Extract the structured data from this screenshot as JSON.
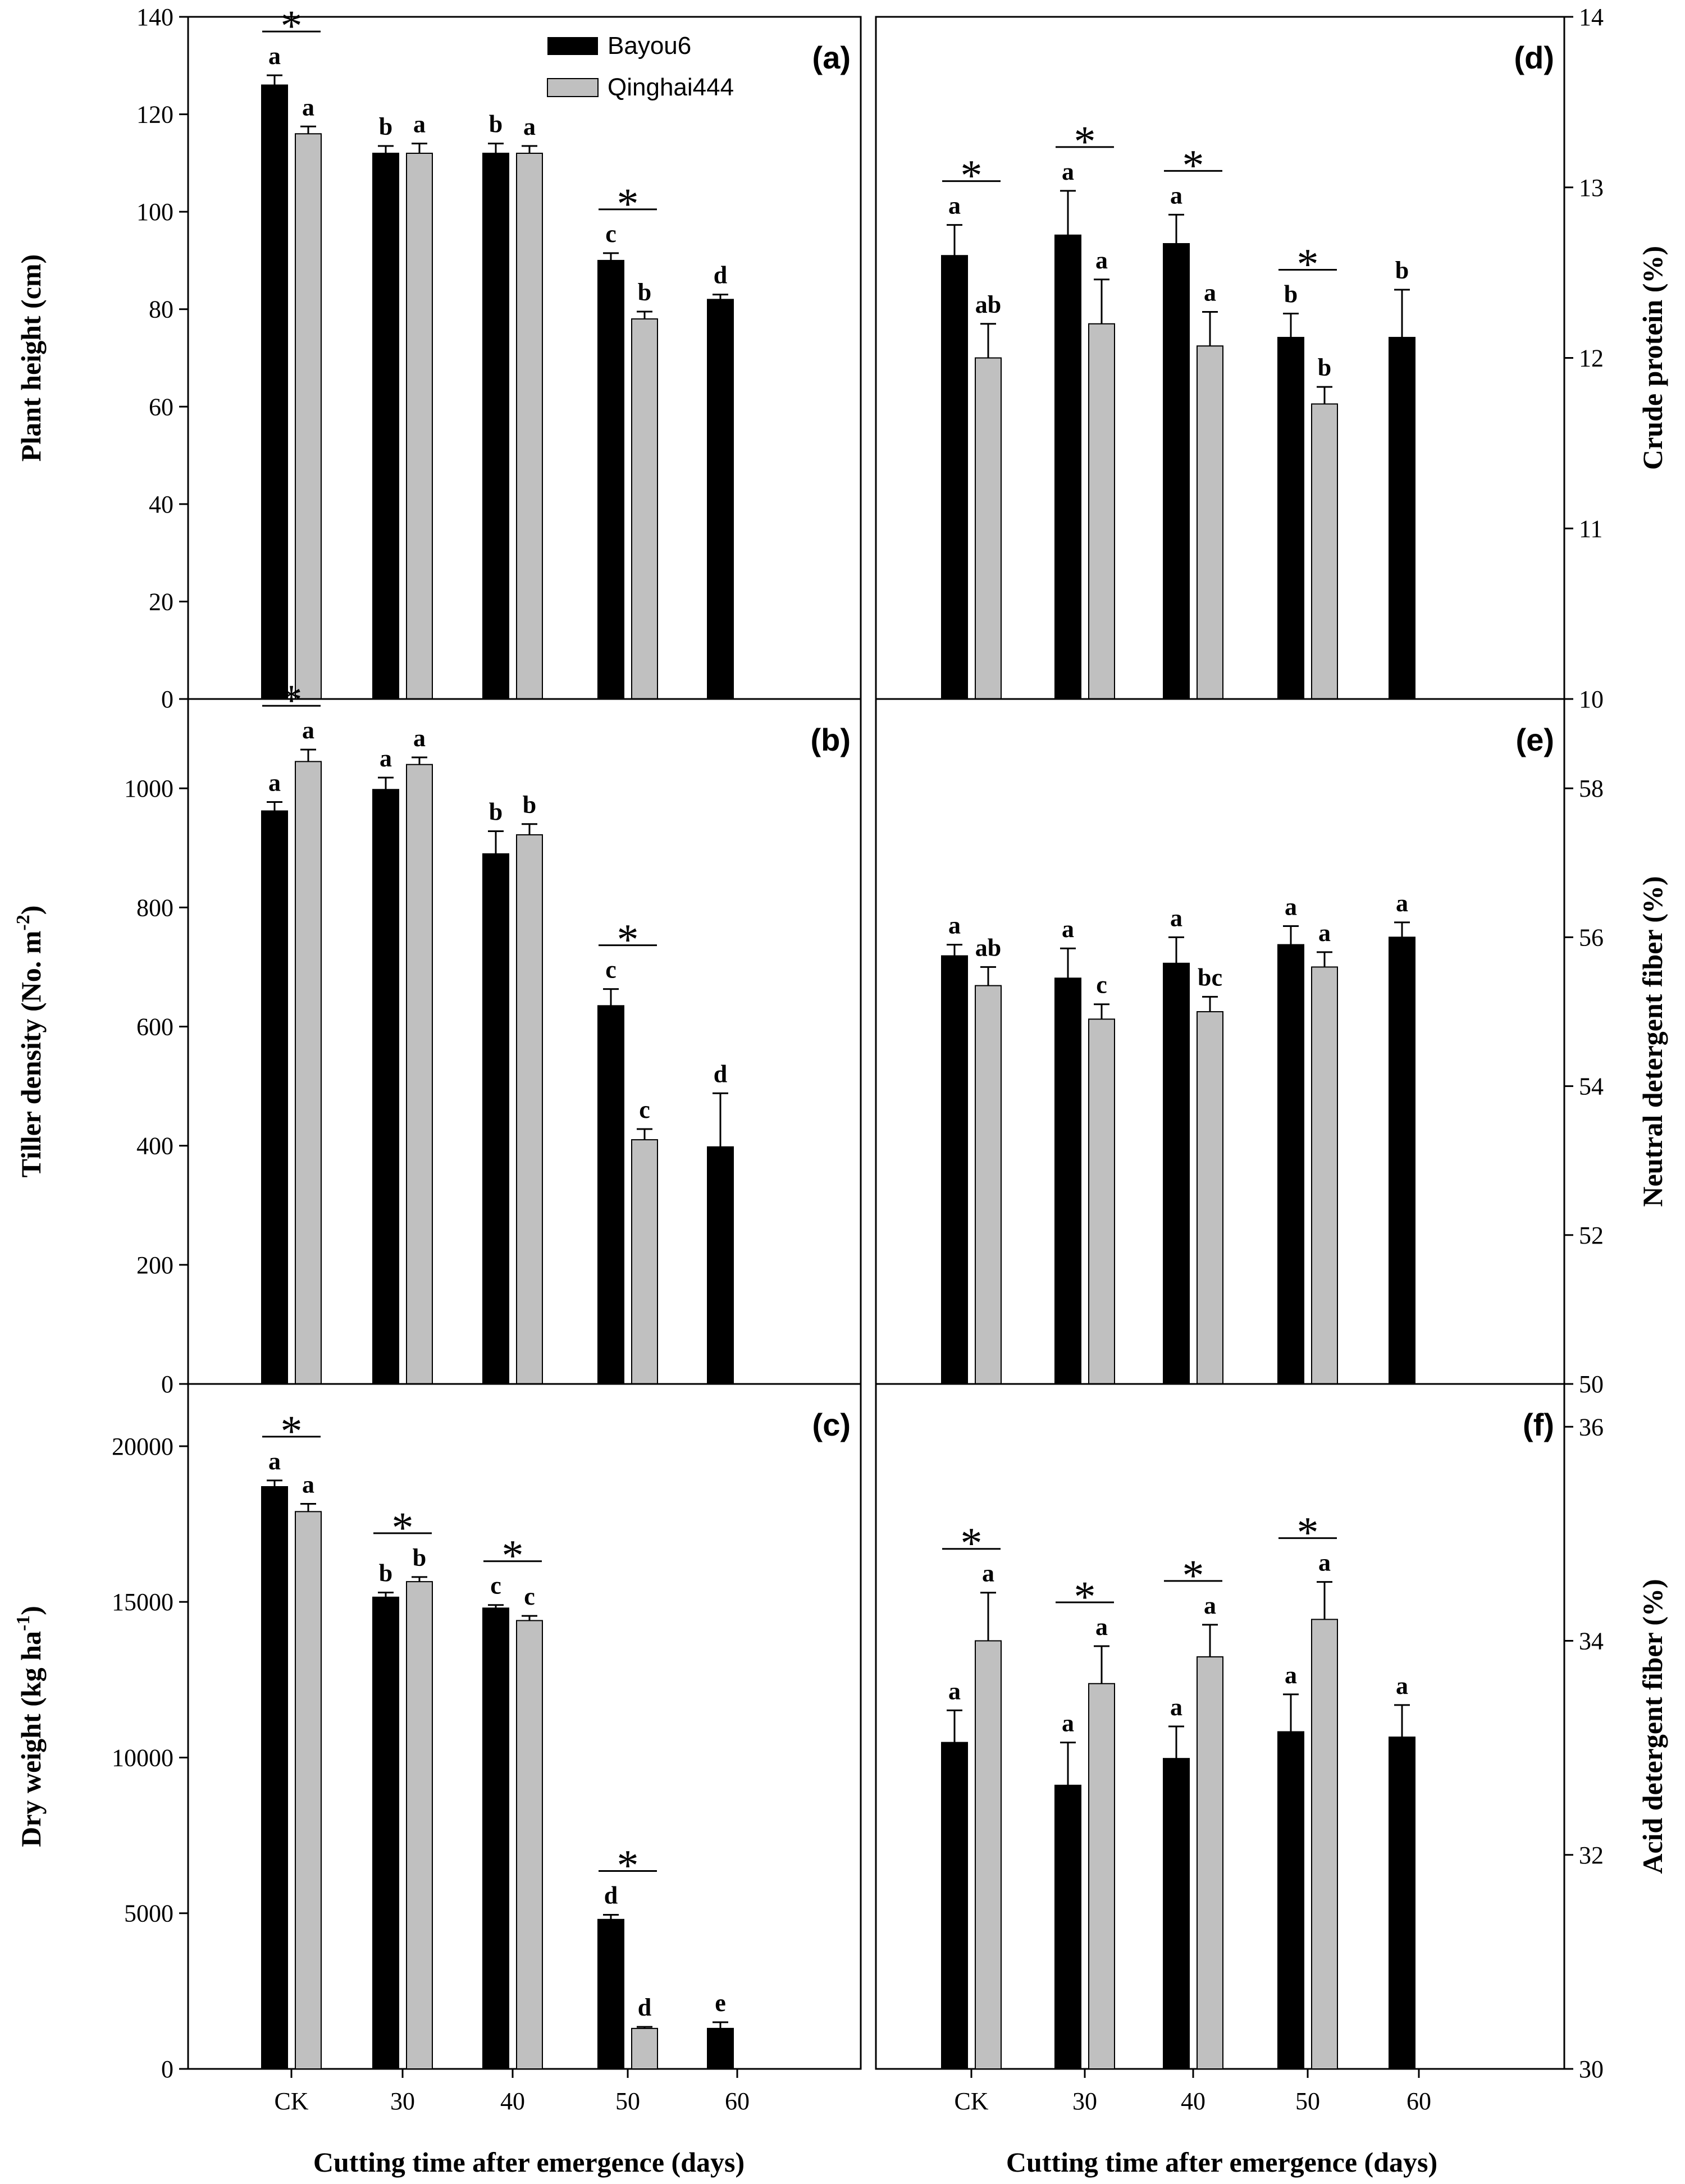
{
  "legend": {
    "series1": "Bayou6",
    "series2": "Qinghai444"
  },
  "colors": {
    "series1": "#000000",
    "series2": "#c0c0c0"
  },
  "xlabel_left": "Cutting time after emergence (days)",
  "xlabel_right": "Cutting time after emergence (days)",
  "chart_data": [
    {
      "type": "bar",
      "id": "a",
      "label": "(a)",
      "ylabel": "Plant height (cm)",
      "yaxis_side": "left",
      "ylim": [
        0,
        140
      ],
      "yticks": [
        0,
        20,
        40,
        60,
        80,
        100,
        120,
        140
      ],
      "categories": [
        "CK",
        "30",
        "40",
        "50",
        "60"
      ],
      "series": [
        {
          "name": "Bayou6",
          "values": [
            126,
            112,
            112,
            90,
            82
          ],
          "errors": [
            2,
            1.5,
            2,
            1.5,
            1
          ],
          "letters": [
            "a",
            "b",
            "b",
            "c",
            "d"
          ]
        },
        {
          "name": "Qinghai444",
          "values": [
            116,
            112,
            112,
            78,
            null
          ],
          "errors": [
            1.5,
            2,
            1.5,
            1.5,
            null
          ],
          "letters": [
            "a",
            "a",
            "a",
            "b",
            ""
          ]
        }
      ],
      "stars": [
        0,
        3
      ]
    },
    {
      "type": "bar",
      "id": "b",
      "label": "(b)",
      "ylabel": "Tiller density (No. m",
      "ylabel_sup": "-2",
      "ylabel_tail": ")",
      "yaxis_side": "left",
      "ylim": [
        0,
        1150
      ],
      "yticks": [
        0,
        200,
        400,
        600,
        800,
        1000
      ],
      "categories": [
        "CK",
        "30",
        "40",
        "50",
        "60"
      ],
      "series": [
        {
          "name": "Bayou6",
          "values": [
            962,
            998,
            890,
            635,
            398
          ],
          "errors": [
            15,
            20,
            38,
            28,
            90
          ],
          "letters": [
            "a",
            "a",
            "b",
            "c",
            "d"
          ]
        },
        {
          "name": "Qinghai444",
          "values": [
            1045,
            1040,
            922,
            410,
            null
          ],
          "errors": [
            20,
            12,
            18,
            18,
            null
          ],
          "letters": [
            "a",
            "a",
            "b",
            "c",
            ""
          ]
        }
      ],
      "stars": [
        0,
        3
      ]
    },
    {
      "type": "bar",
      "id": "c",
      "label": "(c)",
      "ylabel": "Dry weight (kg ha",
      "ylabel_sup": "-1",
      "ylabel_tail": ")",
      "yaxis_side": "left",
      "ylim": [
        0,
        22000
      ],
      "yticks": [
        0,
        5000,
        10000,
        15000,
        20000
      ],
      "categories": [
        "CK",
        "30",
        "40",
        "50",
        "60"
      ],
      "series": [
        {
          "name": "Bayou6",
          "values": [
            18700,
            15150,
            14800,
            4800,
            1300
          ],
          "errors": [
            200,
            150,
            100,
            150,
            200
          ],
          "letters": [
            "a",
            "b",
            "c",
            "d",
            "e"
          ]
        },
        {
          "name": "Qinghai444",
          "values": [
            17900,
            15650,
            14400,
            1300,
            null
          ],
          "errors": [
            250,
            150,
            150,
            50,
            null
          ],
          "letters": [
            "a",
            "b",
            "c",
            "d",
            ""
          ]
        }
      ],
      "stars": [
        0,
        1,
        2,
        3
      ]
    },
    {
      "type": "bar",
      "id": "d",
      "label": "(d)",
      "ylabel": "Crude protein (%)",
      "yaxis_side": "right",
      "ylim": [
        10,
        14
      ],
      "yticks": [
        10,
        11,
        12,
        13,
        14
      ],
      "categories": [
        "CK",
        "30",
        "40",
        "50",
        "60"
      ],
      "series": [
        {
          "name": "Bayou6",
          "values": [
            12.6,
            12.72,
            12.67,
            12.12,
            12.12
          ],
          "errors": [
            0.18,
            0.26,
            0.17,
            0.14,
            0.28
          ],
          "letters": [
            "a",
            "a",
            "a",
            "b",
            "b"
          ]
        },
        {
          "name": "Qinghai444",
          "values": [
            12.0,
            12.2,
            12.07,
            11.73,
            null
          ],
          "errors": [
            0.2,
            0.26,
            0.2,
            0.1,
            null
          ],
          "letters": [
            "ab",
            "a",
            "a",
            "b",
            ""
          ]
        }
      ],
      "stars": [
        0,
        1,
        2,
        3
      ]
    },
    {
      "type": "bar",
      "id": "e",
      "label": "(e)",
      "ylabel": "Neutral detergent fiber  (%)",
      "yaxis_side": "right",
      "ylim": [
        50,
        59.2
      ],
      "yticks": [
        50,
        52,
        54,
        56,
        58
      ],
      "categories": [
        "CK",
        "30",
        "40",
        "50",
        "60"
      ],
      "series": [
        {
          "name": "Bayou6",
          "values": [
            55.75,
            55.45,
            55.65,
            55.9,
            56.0
          ],
          "errors": [
            0.15,
            0.4,
            0.35,
            0.25,
            0.2
          ],
          "letters": [
            "a",
            "a",
            "a",
            "a",
            "a"
          ]
        },
        {
          "name": "Qinghai444",
          "values": [
            55.35,
            54.9,
            55.0,
            55.6,
            null
          ],
          "errors": [
            0.25,
            0.2,
            0.2,
            0.2,
            null
          ],
          "letters": [
            "ab",
            "c",
            "bc",
            "a",
            ""
          ]
        }
      ],
      "stars": []
    },
    {
      "type": "bar",
      "id": "f",
      "label": "(f)",
      "ylabel": "Acid detergent fiber  (%)",
      "yaxis_side": "right",
      "ylim": [
        30,
        36.4
      ],
      "yticks": [
        30,
        32,
        34,
        36
      ],
      "categories": [
        "CK",
        "30",
        "40",
        "50",
        "60"
      ],
      "series": [
        {
          "name": "Bayou6",
          "values": [
            33.05,
            32.65,
            32.9,
            33.15,
            33.1
          ],
          "errors": [
            0.3,
            0.4,
            0.3,
            0.35,
            0.3
          ],
          "letters": [
            "a",
            "a",
            "a",
            "a",
            "a"
          ]
        },
        {
          "name": "Qinghai444",
          "values": [
            34.0,
            33.6,
            33.85,
            34.2,
            null
          ],
          "errors": [
            0.45,
            0.35,
            0.3,
            0.35,
            null
          ],
          "letters": [
            "a",
            "a",
            "a",
            "a",
            ""
          ]
        }
      ],
      "stars": [
        0,
        1,
        2,
        3
      ]
    }
  ]
}
